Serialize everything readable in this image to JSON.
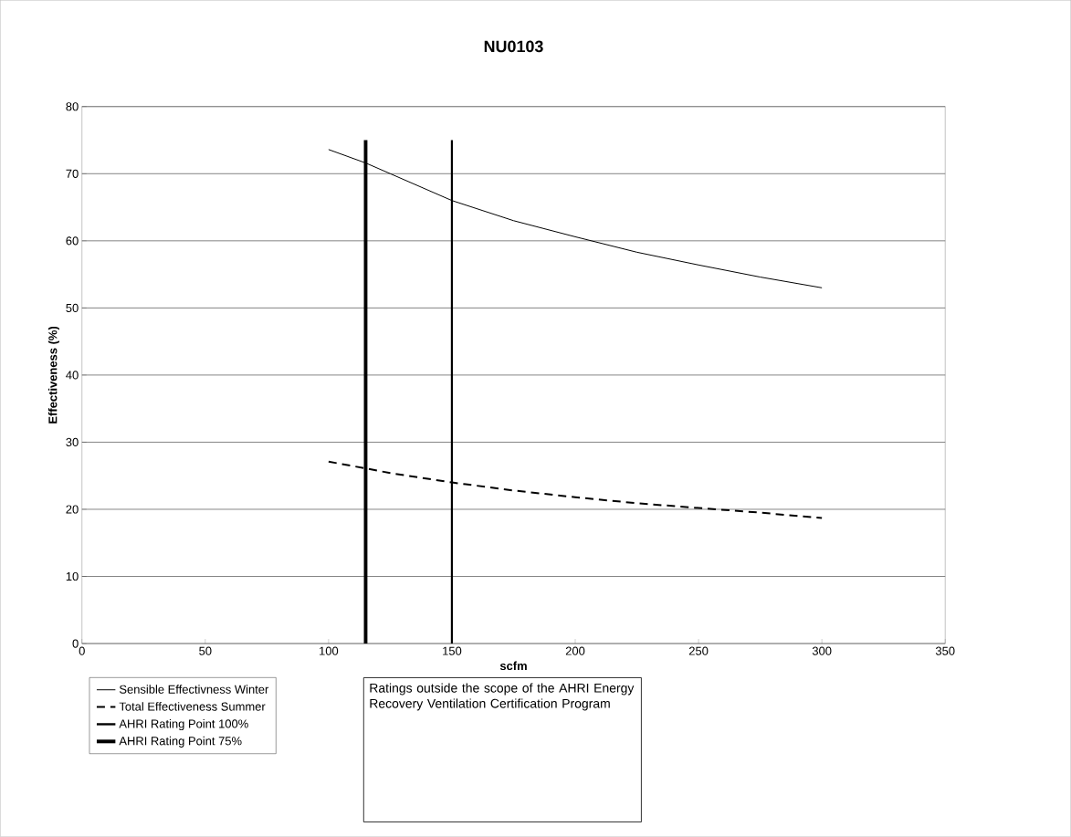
{
  "chart_data": {
    "type": "line",
    "title": "NU0103",
    "xlabel": "scfm",
    "ylabel": "Effectiveness (%)",
    "xlim": [
      0,
      350
    ],
    "xticks": [
      0,
      50,
      100,
      150,
      200,
      250,
      300,
      350
    ],
    "ylim": [
      0,
      80
    ],
    "yticks": [
      0,
      10,
      20,
      30,
      40,
      50,
      60,
      70,
      80
    ],
    "grid": "y",
    "legend": "bottom",
    "marker": "none",
    "series": [
      {
        "name": "Sensible Effectivness Winter",
        "color": "#000000",
        "line_style": "solid",
        "x": [
          100,
          115,
          125,
          150,
          175,
          200,
          225,
          250,
          275,
          300
        ],
        "values": [
          73.6,
          71.6,
          70.0,
          66.0,
          63.0,
          60.6,
          58.3,
          56.4,
          54.6,
          53.0
        ]
      },
      {
        "name": "Total Effectiveness Summer",
        "color": "#000000",
        "line_style": "dashed",
        "x": [
          100,
          115,
          125,
          150,
          175,
          200,
          225,
          250,
          275,
          300
        ],
        "values": [
          27.1,
          26.1,
          25.4,
          24.0,
          22.8,
          21.8,
          20.9,
          20.2,
          19.5,
          18.7
        ]
      },
      {
        "name": "AHRI Rating Point 100%",
        "color": "#000000",
        "line_style": "solid",
        "x": [
          150,
          150
        ],
        "values": [
          0,
          75
        ]
      },
      {
        "name": "AHRI Rating Point 75%",
        "color": "#000000",
        "line_style": "solid",
        "x": [
          115,
          115
        ],
        "values": [
          0,
          75
        ]
      }
    ],
    "annotations": [
      "Ratings outside the scope of the AHRI Energy Recovery Ventilation Certification Program"
    ]
  }
}
